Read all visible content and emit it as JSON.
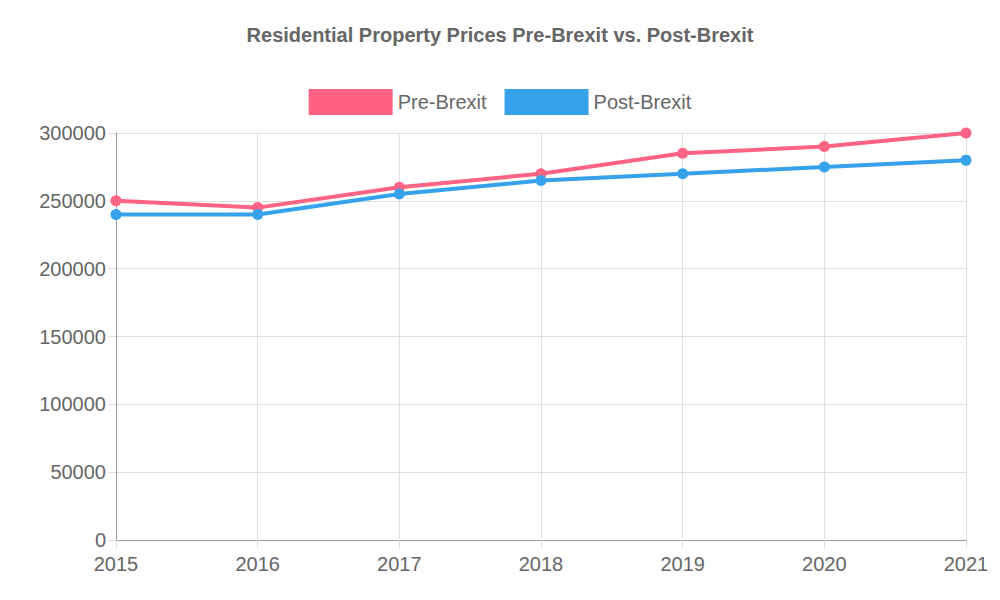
{
  "chart_data": {
    "type": "line",
    "title": "Residential Property Prices Pre-Brexit vs. Post-Brexit",
    "categories": [
      "2015",
      "2016",
      "2017",
      "2018",
      "2019",
      "2020",
      "2021"
    ],
    "series": [
      {
        "name": "Pre-Brexit",
        "color": "#ff6384",
        "values": [
          250000,
          245000,
          260000,
          270000,
          285000,
          290000,
          300000
        ]
      },
      {
        "name": "Post-Brexit",
        "color": "#36a2eb",
        "values": [
          240000,
          240000,
          255000,
          265000,
          270000,
          275000,
          280000
        ]
      }
    ],
    "ylim": [
      0,
      300000
    ],
    "yticks": [
      0,
      50000,
      100000,
      150000,
      200000,
      250000,
      300000
    ],
    "grid": true,
    "legend": "top",
    "marker": "circle"
  }
}
